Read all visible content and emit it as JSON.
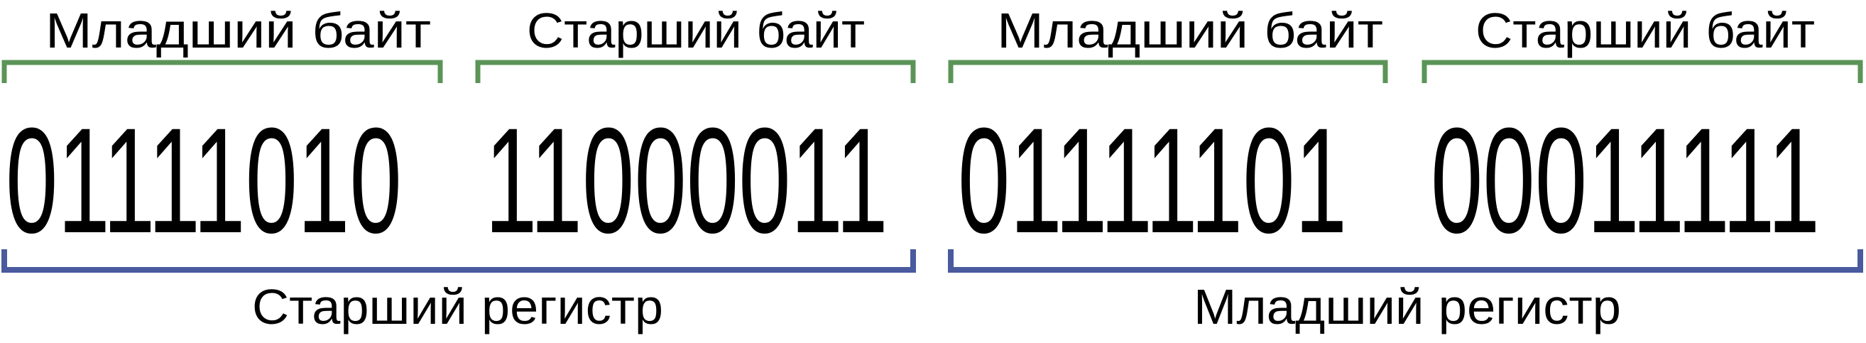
{
  "colors": {
    "byte_bracket": "#5b9458",
    "register_bracket": "#4a5a9e",
    "text": "#000000"
  },
  "bytes": [
    {
      "label": "Младший байт",
      "bits": "01111010"
    },
    {
      "label": "Старший байт",
      "bits": "11000011"
    },
    {
      "label": "Младший байт",
      "bits": "01111101"
    },
    {
      "label": "Старший байт",
      "bits": "00011111"
    }
  ],
  "registers": [
    {
      "label": "Старший регистр"
    },
    {
      "label": "Младший регистр"
    }
  ]
}
